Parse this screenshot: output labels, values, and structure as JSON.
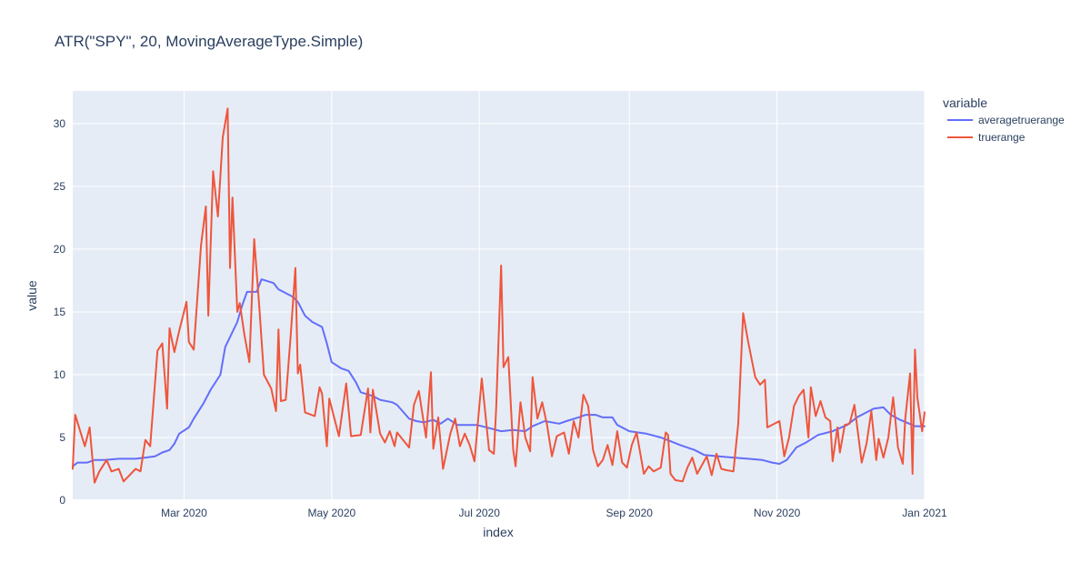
{
  "chart_data": {
    "type": "line",
    "title": "ATR(\"SPY\", 20, MovingAverageType.Simple)",
    "xlabel": "index",
    "ylabel": "value",
    "legend_title": "variable",
    "legend_position": "top-right",
    "grid": true,
    "xlim": [
      "2020-01-15",
      "2021-01-01"
    ],
    "ylim": [
      0,
      32.6
    ],
    "x_ticks": [
      {
        "date": "2020-03-01",
        "label": "Mar 2020"
      },
      {
        "date": "2020-05-01",
        "label": "May 2020"
      },
      {
        "date": "2020-07-01",
        "label": "Jul 2020"
      },
      {
        "date": "2020-09-01",
        "label": "Sep 2020"
      },
      {
        "date": "2020-11-01",
        "label": "Nov 2020"
      },
      {
        "date": "2021-01-01",
        "label": "Jan 2021"
      }
    ],
    "y_ticks": [
      0,
      5,
      10,
      15,
      20,
      25,
      30
    ],
    "series": [
      {
        "name": "averagetruerange",
        "color": "#636efa",
        "points": [
          [
            "2020-01-15",
            2.7
          ],
          [
            "2020-01-17",
            3.0
          ],
          [
            "2020-01-21",
            3.0
          ],
          [
            "2020-01-24",
            3.2
          ],
          [
            "2020-01-28",
            3.2
          ],
          [
            "2020-02-03",
            3.3
          ],
          [
            "2020-02-10",
            3.3
          ],
          [
            "2020-02-14",
            3.4
          ],
          [
            "2020-02-18",
            3.5
          ],
          [
            "2020-02-21",
            3.8
          ],
          [
            "2020-02-24",
            4.0
          ],
          [
            "2020-02-26",
            4.5
          ],
          [
            "2020-02-28",
            5.3
          ],
          [
            "2020-03-03",
            5.8
          ],
          [
            "2020-03-05",
            6.5
          ],
          [
            "2020-03-09",
            7.7
          ],
          [
            "2020-03-12",
            8.8
          ],
          [
            "2020-03-16",
            10.0
          ],
          [
            "2020-03-18",
            12.2
          ],
          [
            "2020-03-20",
            13.0
          ],
          [
            "2020-03-23",
            14.2
          ],
          [
            "2020-03-25",
            15.5
          ],
          [
            "2020-03-27",
            16.6
          ],
          [
            "2020-03-31",
            16.6
          ],
          [
            "2020-04-02",
            17.6
          ],
          [
            "2020-04-07",
            17.3
          ],
          [
            "2020-04-09",
            16.8
          ],
          [
            "2020-04-13",
            16.4
          ],
          [
            "2020-04-15",
            16.2
          ],
          [
            "2020-04-17",
            15.8
          ],
          [
            "2020-04-20",
            14.7
          ],
          [
            "2020-04-23",
            14.2
          ],
          [
            "2020-04-27",
            13.8
          ],
          [
            "2020-04-29",
            12.5
          ],
          [
            "2020-05-01",
            11.0
          ],
          [
            "2020-05-05",
            10.5
          ],
          [
            "2020-05-08",
            10.3
          ],
          [
            "2020-05-11",
            9.4
          ],
          [
            "2020-05-13",
            8.6
          ],
          [
            "2020-05-18",
            8.3
          ],
          [
            "2020-05-21",
            8.0
          ],
          [
            "2020-05-26",
            7.8
          ],
          [
            "2020-05-28",
            7.6
          ],
          [
            "2020-06-02",
            6.5
          ],
          [
            "2020-06-05",
            6.3
          ],
          [
            "2020-06-08",
            6.2
          ],
          [
            "2020-06-12",
            6.4
          ],
          [
            "2020-06-15",
            6.1
          ],
          [
            "2020-06-18",
            6.5
          ],
          [
            "2020-06-22",
            6.0
          ],
          [
            "2020-06-26",
            6.0
          ],
          [
            "2020-06-30",
            6.0
          ],
          [
            "2020-07-06",
            5.7
          ],
          [
            "2020-07-10",
            5.5
          ],
          [
            "2020-07-15",
            5.6
          ],
          [
            "2020-07-20",
            5.5
          ],
          [
            "2020-07-23",
            5.9
          ],
          [
            "2020-07-28",
            6.3
          ],
          [
            "2020-08-03",
            6.1
          ],
          [
            "2020-08-06",
            6.3
          ],
          [
            "2020-08-11",
            6.6
          ],
          [
            "2020-08-14",
            6.8
          ],
          [
            "2020-08-18",
            6.8
          ],
          [
            "2020-08-21",
            6.6
          ],
          [
            "2020-08-25",
            6.6
          ],
          [
            "2020-08-27",
            6.0
          ],
          [
            "2020-09-01",
            5.5
          ],
          [
            "2020-09-08",
            5.3
          ],
          [
            "2020-09-14",
            5.0
          ],
          [
            "2020-09-18",
            4.7
          ],
          [
            "2020-09-22",
            4.4
          ],
          [
            "2020-09-28",
            4.0
          ],
          [
            "2020-10-02",
            3.6
          ],
          [
            "2020-10-08",
            3.5
          ],
          [
            "2020-10-14",
            3.4
          ],
          [
            "2020-10-20",
            3.3
          ],
          [
            "2020-10-26",
            3.2
          ],
          [
            "2020-10-30",
            3.0
          ],
          [
            "2020-11-02",
            2.9
          ],
          [
            "2020-11-05",
            3.2
          ],
          [
            "2020-11-09",
            4.2
          ],
          [
            "2020-11-13",
            4.6
          ],
          [
            "2020-11-18",
            5.2
          ],
          [
            "2020-11-24",
            5.5
          ],
          [
            "2020-11-30",
            6.0
          ],
          [
            "2020-12-04",
            6.6
          ],
          [
            "2020-12-08",
            7.0
          ],
          [
            "2020-12-11",
            7.3
          ],
          [
            "2020-12-15",
            7.4
          ],
          [
            "2020-12-18",
            6.8
          ],
          [
            "2020-12-22",
            6.4
          ],
          [
            "2020-12-28",
            5.9
          ],
          [
            "2021-01-01",
            5.9
          ]
        ]
      },
      {
        "name": "truerange",
        "color": "#ef553b",
        "points": [
          [
            "2020-01-15",
            2.5
          ],
          [
            "2020-01-16",
            6.8
          ],
          [
            "2020-01-20",
            4.3
          ],
          [
            "2020-01-22",
            5.8
          ],
          [
            "2020-01-24",
            1.4
          ],
          [
            "2020-01-26",
            2.3
          ],
          [
            "2020-01-29",
            3.2
          ],
          [
            "2020-01-31",
            2.3
          ],
          [
            "2020-02-03",
            2.5
          ],
          [
            "2020-02-05",
            1.5
          ],
          [
            "2020-02-10",
            2.5
          ],
          [
            "2020-02-12",
            2.3
          ],
          [
            "2020-02-14",
            4.8
          ],
          [
            "2020-02-16",
            4.3
          ],
          [
            "2020-02-19",
            11.9
          ],
          [
            "2020-02-21",
            12.5
          ],
          [
            "2020-02-23",
            7.3
          ],
          [
            "2020-02-24",
            13.7
          ],
          [
            "2020-02-26",
            11.8
          ],
          [
            "2020-02-28",
            13.5
          ],
          [
            "2020-03-02",
            15.8
          ],
          [
            "2020-03-03",
            12.6
          ],
          [
            "2020-03-05",
            12.0
          ],
          [
            "2020-03-08",
            20.3
          ],
          [
            "2020-03-10",
            23.4
          ],
          [
            "2020-03-11",
            14.7
          ],
          [
            "2020-03-13",
            26.2
          ],
          [
            "2020-03-15",
            22.6
          ],
          [
            "2020-03-17",
            28.9
          ],
          [
            "2020-03-19",
            31.2
          ],
          [
            "2020-03-20",
            18.5
          ],
          [
            "2020-03-21",
            24.1
          ],
          [
            "2020-03-23",
            15.0
          ],
          [
            "2020-03-24",
            15.7
          ],
          [
            "2020-03-26",
            13.1
          ],
          [
            "2020-03-28",
            11.0
          ],
          [
            "2020-03-30",
            20.8
          ],
          [
            "2020-04-01",
            15.6
          ],
          [
            "2020-04-03",
            10.0
          ],
          [
            "2020-04-06",
            8.9
          ],
          [
            "2020-04-08",
            7.1
          ],
          [
            "2020-04-09",
            13.6
          ],
          [
            "2020-04-10",
            7.9
          ],
          [
            "2020-04-12",
            8.0
          ],
          [
            "2020-04-14",
            13.0
          ],
          [
            "2020-04-16",
            18.5
          ],
          [
            "2020-04-17",
            10.1
          ],
          [
            "2020-04-18",
            10.8
          ],
          [
            "2020-04-20",
            7.0
          ],
          [
            "2020-04-24",
            6.7
          ],
          [
            "2020-04-26",
            9.0
          ],
          [
            "2020-04-27",
            8.5
          ],
          [
            "2020-04-29",
            4.3
          ],
          [
            "2020-04-30",
            8.1
          ],
          [
            "2020-05-04",
            5.1
          ],
          [
            "2020-05-07",
            9.3
          ],
          [
            "2020-05-09",
            5.1
          ],
          [
            "2020-05-13",
            5.2
          ],
          [
            "2020-05-16",
            8.9
          ],
          [
            "2020-05-17",
            5.4
          ],
          [
            "2020-05-18",
            8.8
          ],
          [
            "2020-05-21",
            5.3
          ],
          [
            "2020-05-23",
            4.6
          ],
          [
            "2020-05-25",
            5.5
          ],
          [
            "2020-05-27",
            4.3
          ],
          [
            "2020-05-28",
            5.4
          ],
          [
            "2020-06-02",
            4.2
          ],
          [
            "2020-06-04",
            7.6
          ],
          [
            "2020-06-06",
            8.7
          ],
          [
            "2020-06-09",
            5.0
          ],
          [
            "2020-06-11",
            10.2
          ],
          [
            "2020-06-12",
            4.1
          ],
          [
            "2020-06-14",
            6.6
          ],
          [
            "2020-06-16",
            2.5
          ],
          [
            "2020-06-19",
            5.3
          ],
          [
            "2020-06-21",
            6.5
          ],
          [
            "2020-06-23",
            4.3
          ],
          [
            "2020-06-25",
            5.3
          ],
          [
            "2020-06-27",
            4.4
          ],
          [
            "2020-06-29",
            3.1
          ],
          [
            "2020-07-02",
            9.7
          ],
          [
            "2020-07-05",
            4.0
          ],
          [
            "2020-07-07",
            3.7
          ],
          [
            "2020-07-08",
            7.4
          ],
          [
            "2020-07-10",
            18.7
          ],
          [
            "2020-07-11",
            10.6
          ],
          [
            "2020-07-13",
            11.4
          ],
          [
            "2020-07-15",
            4.0
          ],
          [
            "2020-07-16",
            2.7
          ],
          [
            "2020-07-18",
            7.8
          ],
          [
            "2020-07-20",
            5.0
          ],
          [
            "2020-07-22",
            3.9
          ],
          [
            "2020-07-23",
            9.8
          ],
          [
            "2020-07-25",
            6.5
          ],
          [
            "2020-07-27",
            7.8
          ],
          [
            "2020-07-29",
            6.0
          ],
          [
            "2020-07-31",
            3.5
          ],
          [
            "2020-08-02",
            5.1
          ],
          [
            "2020-08-05",
            5.4
          ],
          [
            "2020-08-07",
            3.7
          ],
          [
            "2020-08-09",
            6.3
          ],
          [
            "2020-08-11",
            5.0
          ],
          [
            "2020-08-13",
            8.4
          ],
          [
            "2020-08-15",
            7.5
          ],
          [
            "2020-08-17",
            4.0
          ],
          [
            "2020-08-19",
            2.7
          ],
          [
            "2020-08-21",
            3.2
          ],
          [
            "2020-08-23",
            4.4
          ],
          [
            "2020-08-25",
            2.8
          ],
          [
            "2020-08-27",
            5.5
          ],
          [
            "2020-08-29",
            3.0
          ],
          [
            "2020-08-31",
            2.6
          ],
          [
            "2020-09-02",
            4.4
          ],
          [
            "2020-09-04",
            5.4
          ],
          [
            "2020-09-07",
            2.1
          ],
          [
            "2020-09-09",
            2.7
          ],
          [
            "2020-09-11",
            2.3
          ],
          [
            "2020-09-14",
            2.6
          ],
          [
            "2020-09-16",
            5.4
          ],
          [
            "2020-09-17",
            5.2
          ],
          [
            "2020-09-18",
            2.1
          ],
          [
            "2020-09-20",
            1.6
          ],
          [
            "2020-09-23",
            1.5
          ],
          [
            "2020-09-25",
            2.6
          ],
          [
            "2020-09-27",
            3.4
          ],
          [
            "2020-09-29",
            2.1
          ],
          [
            "2020-10-01",
            2.8
          ],
          [
            "2020-10-03",
            3.5
          ],
          [
            "2020-10-05",
            2.0
          ],
          [
            "2020-10-07",
            3.7
          ],
          [
            "2020-10-09",
            2.5
          ],
          [
            "2020-10-11",
            2.4
          ],
          [
            "2020-10-14",
            2.3
          ],
          [
            "2020-10-16",
            6.1
          ],
          [
            "2020-10-18",
            14.9
          ],
          [
            "2020-10-20",
            12.7
          ],
          [
            "2020-10-23",
            9.8
          ],
          [
            "2020-10-25",
            9.2
          ],
          [
            "2020-10-27",
            9.6
          ],
          [
            "2020-10-28",
            5.8
          ],
          [
            "2020-11-02",
            6.3
          ],
          [
            "2020-11-04",
            3.5
          ],
          [
            "2020-11-06",
            5.0
          ],
          [
            "2020-11-08",
            7.5
          ],
          [
            "2020-11-10",
            8.3
          ],
          [
            "2020-11-12",
            8.8
          ],
          [
            "2020-11-14",
            5.0
          ],
          [
            "2020-11-15",
            9.0
          ],
          [
            "2020-11-17",
            6.7
          ],
          [
            "2020-11-19",
            7.9
          ],
          [
            "2020-11-21",
            6.6
          ],
          [
            "2020-11-23",
            6.3
          ],
          [
            "2020-11-24",
            3.1
          ],
          [
            "2020-11-26",
            5.8
          ],
          [
            "2020-11-27",
            3.8
          ],
          [
            "2020-11-29",
            6.0
          ],
          [
            "2020-12-01",
            6.1
          ],
          [
            "2020-12-03",
            7.6
          ],
          [
            "2020-12-06",
            3.0
          ],
          [
            "2020-12-08",
            4.5
          ],
          [
            "2020-12-10",
            7.1
          ],
          [
            "2020-12-12",
            3.2
          ],
          [
            "2020-12-13",
            4.9
          ],
          [
            "2020-12-15",
            3.4
          ],
          [
            "2020-12-17",
            5.0
          ],
          [
            "2020-12-19",
            8.2
          ],
          [
            "2020-12-21",
            4.2
          ],
          [
            "2020-12-23",
            2.9
          ],
          [
            "2020-12-24",
            6.5
          ],
          [
            "2020-12-26",
            10.1
          ],
          [
            "2020-12-27",
            2.1
          ],
          [
            "2020-12-28",
            12.0
          ],
          [
            "2020-12-29",
            8.2
          ],
          [
            "2020-12-31",
            5.5
          ],
          [
            "2021-01-01",
            7.0
          ]
        ]
      }
    ]
  }
}
